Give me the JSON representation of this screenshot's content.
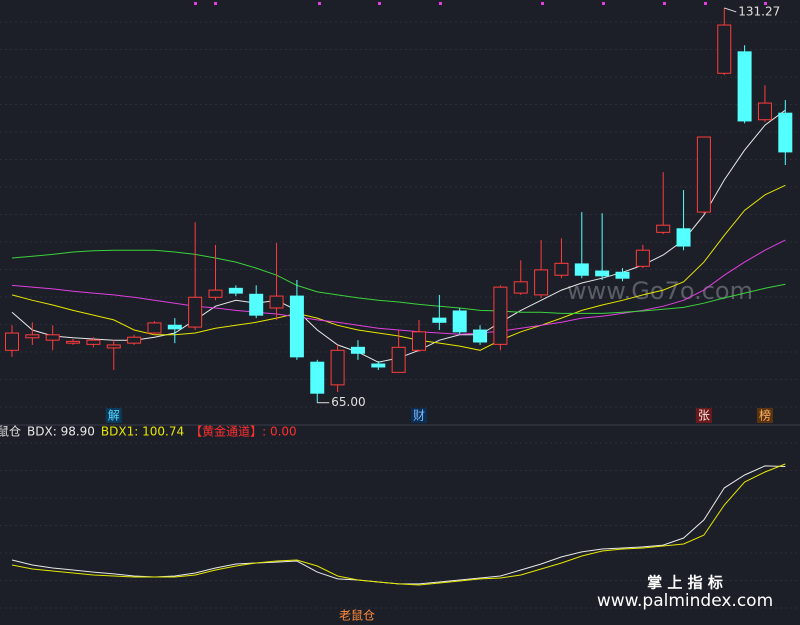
{
  "chart_data": [
    {
      "type": "candlestick",
      "ylim": [
        62.1,
        132.6
      ],
      "up_color": "#ff3c3c",
      "down_color": "#54ffff",
      "candles": [
        [
          73.8,
          78.0,
          72.7,
          76.7
        ],
        [
          75.9,
          78.5,
          74.7,
          76.4
        ],
        [
          75.5,
          78.0,
          73.8,
          76.4
        ],
        [
          75.0,
          75.7,
          74.7,
          75.3
        ],
        [
          74.8,
          76.0,
          74.3,
          75.5
        ],
        [
          74.2,
          75.5,
          70.5,
          74.7
        ],
        [
          75.0,
          76.4,
          74.7,
          76.0
        ],
        [
          76.7,
          78.7,
          76.4,
          78.4
        ],
        [
          78.0,
          79.2,
          75.0,
          77.4
        ],
        [
          77.7,
          95.3,
          77.2,
          82.7
        ],
        [
          82.7,
          91.5,
          82.2,
          83.9
        ],
        [
          84.2,
          84.7,
          82.9,
          83.4
        ],
        [
          83.2,
          84.7,
          79.2,
          79.7
        ],
        [
          80.9,
          91.8,
          78.9,
          82.9
        ],
        [
          82.9,
          85.6,
          72.2,
          72.7
        ],
        [
          71.8,
          72.2,
          65.0,
          66.6
        ],
        [
          68.0,
          74.7,
          66.8,
          73.8
        ],
        [
          74.3,
          75.5,
          72.2,
          73.3
        ],
        [
          71.5,
          72.0,
          70.5,
          71.0
        ],
        [
          70.1,
          77.2,
          70.1,
          74.3
        ],
        [
          73.8,
          78.9,
          73.5,
          76.9
        ],
        [
          79.2,
          83.1,
          77.2,
          78.5
        ],
        [
          80.4,
          80.9,
          76.5,
          76.9
        ],
        [
          77.2,
          78.0,
          74.7,
          75.2
        ],
        [
          74.8,
          84.7,
          73.8,
          84.4
        ],
        [
          83.4,
          88.9,
          83.1,
          85.3
        ],
        [
          83.1,
          92.3,
          82.6,
          87.3
        ],
        [
          86.4,
          92.6,
          85.9,
          88.4
        ],
        [
          88.3,
          97.0,
          85.9,
          86.4
        ],
        [
          87.1,
          96.8,
          85.6,
          86.3
        ],
        [
          86.9,
          87.6,
          85.4,
          85.9
        ],
        [
          87.9,
          91.5,
          87.6,
          90.6
        ],
        [
          93.6,
          103.7,
          93.3,
          94.8
        ],
        [
          94.2,
          100.7,
          90.6,
          91.3
        ],
        [
          97.0,
          109.6,
          96.7,
          109.6
        ],
        [
          120.3,
          131.27,
          120.0,
          128.4
        ],
        [
          123.9,
          125.0,
          111.9,
          112.3
        ],
        [
          112.5,
          118.3,
          112.1,
          115.3
        ],
        [
          113.6,
          115.8,
          104.9,
          107.1
        ]
      ],
      "lines": [
        {
          "color": "#e8e8e8",
          "values": [
            80.2,
            77.2,
            76.2,
            75.9,
            75.7,
            75.5,
            75.5,
            76.0,
            76.7,
            78.9,
            81.2,
            82.2,
            81.7,
            82.2,
            80.5,
            77.2,
            74.7,
            73.5,
            71.8,
            72.5,
            73.8,
            75.5,
            76.4,
            76.4,
            78.5,
            80.5,
            82.2,
            83.9,
            85.1,
            85.9,
            86.9,
            88.1,
            89.8,
            92.3,
            96.5,
            102.4,
            107.4,
            111.6,
            114.1
          ]
        },
        {
          "color": "#e6e600",
          "values": [
            83.1,
            82.2,
            81.4,
            80.5,
            79.7,
            78.9,
            77.2,
            76.4,
            76.4,
            76.7,
            77.5,
            78.0,
            78.5,
            79.2,
            80.0,
            79.2,
            78.0,
            77.2,
            76.7,
            76.2,
            75.5,
            75.0,
            74.5,
            73.8,
            75.5,
            76.9,
            78.0,
            79.2,
            80.5,
            81.4,
            82.2,
            83.1,
            83.9,
            85.3,
            88.6,
            93.1,
            97.3,
            99.9,
            101.5
          ]
        },
        {
          "color": "#e040e0",
          "values": [
            84.7,
            84.4,
            84.1,
            83.7,
            83.4,
            83.1,
            82.7,
            82.2,
            81.7,
            81.2,
            80.9,
            80.5,
            80.2,
            79.9,
            79.4,
            78.9,
            78.5,
            78.0,
            77.5,
            77.2,
            76.9,
            76.7,
            76.5,
            76.7,
            77.0,
            77.5,
            78.0,
            78.5,
            79.2,
            79.5,
            80.0,
            80.5,
            81.2,
            82.2,
            83.9,
            86.4,
            88.6,
            90.6,
            92.3
          ]
        },
        {
          "color": "#3cd23c",
          "values": [
            89.3,
            89.6,
            89.9,
            90.3,
            90.5,
            90.6,
            90.6,
            90.6,
            90.3,
            89.9,
            89.3,
            88.6,
            87.6,
            86.4,
            84.7,
            83.6,
            83.1,
            82.6,
            82.2,
            81.9,
            81.5,
            81.2,
            80.9,
            80.5,
            80.4,
            80.2,
            80.2,
            80.0,
            80.0,
            80.0,
            80.2,
            80.4,
            80.7,
            81.0,
            81.7,
            82.6,
            83.4,
            84.2,
            84.9
          ]
        }
      ],
      "extreme_labels": [
        {
          "value": 131.27,
          "label": "131.27"
        },
        {
          "value": 65,
          "label": "65.00"
        }
      ],
      "event_labels": [
        "解",
        "财",
        "张",
        "榜"
      ]
    },
    {
      "type": "line",
      "ylim": [
        0,
        100
      ],
      "legend": [
        {
          "text": "鼠仓",
          "color": "#e0e0e0"
        },
        {
          "text": "BDX: 98.90",
          "color": "#e8e8e8"
        },
        {
          "text": "BDX1: 100.74",
          "color": "#e6e600"
        },
        {
          "text": "【黄金通道】: 0.00",
          "color": "#ff3030"
        }
      ],
      "series": [
        {
          "color": "#e8e8e8",
          "values": [
            29.6,
            25.9,
            23.7,
            22.2,
            20.7,
            19.3,
            17.8,
            17.0,
            17.8,
            20.0,
            23.7,
            26.7,
            27.4,
            28.1,
            28.9,
            20.7,
            15.6,
            14.8,
            13.3,
            11.9,
            11.9,
            13.3,
            14.8,
            16.3,
            17.8,
            22.2,
            26.7,
            31.9,
            35.6,
            37.8,
            38.5,
            39.3,
            40.7,
            45.9,
            59.3,
            83.0,
            92.6,
            99.3,
            98.9
          ]
        },
        {
          "color": "#e6e600",
          "values": [
            25.9,
            23.0,
            21.5,
            20.0,
            18.5,
            17.8,
            17.0,
            17.0,
            17.0,
            18.5,
            22.2,
            25.2,
            27.4,
            28.9,
            29.6,
            25.2,
            17.8,
            14.8,
            13.3,
            11.9,
            11.1,
            12.6,
            14.1,
            15.6,
            16.3,
            18.5,
            23.0,
            27.4,
            32.6,
            36.3,
            37.8,
            38.5,
            40.0,
            41.5,
            48.1,
            70.4,
            87.4,
            94.8,
            100.74
          ]
        }
      ],
      "footer": "老鼠仓"
    }
  ],
  "watermarks": [
    "www.Go7o.com",
    "掌 上 指 标",
    "www.palmindex.com"
  ]
}
